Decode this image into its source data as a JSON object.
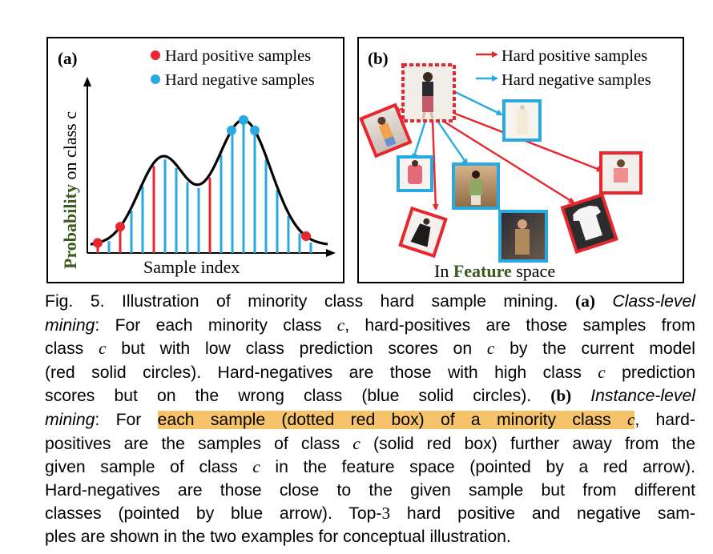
{
  "panel_a": {
    "label": "(a)",
    "legend_positive": "Hard positive samples",
    "legend_negative": "Hard negative samples",
    "xlabel": "Sample index",
    "ylabel_bold": "Probability",
    "ylabel_rest": " on class c",
    "colors": {
      "positive": "#e8262d",
      "negative": "#29a9e1",
      "curve": "#000000"
    }
  },
  "panel_b": {
    "label": "(b)",
    "legend_positive": "Hard positive samples",
    "legend_negative": "Hard negative samples",
    "footer_pre": "In ",
    "footer_bold": "Feature",
    "footer_post": " space",
    "colors": {
      "positive": "#e8262d",
      "negative": "#29a9e1",
      "feature": "#3b5a1e"
    }
  },
  "caption": {
    "l1_a": "Fig. 5. Illustration of minority class hard sample mining. ",
    "l1_b": "(a)",
    "l1_c": " Class-level",
    "l2_a": "mining",
    "l2_b": ": For each minority class ",
    "l2_c": "c",
    "l2_d": ", hard-positives are those samples from",
    "l3_a": "class ",
    "l3_b": "c",
    "l3_c": " but with low class prediction scores on ",
    "l3_d": "c",
    "l3_e": " by the current model",
    "l4_a": "(red solid circles). Hard-negatives are those with high class ",
    "l4_b": "c",
    "l4_c": " prediction",
    "l5_a": "scores but on the wrong class (blue solid circles). ",
    "l5_b": "(b)",
    "l5_c": " Instance-level",
    "l6_a": "mining",
    "l6_b": ": For ",
    "l6_hl": "each sample (dotted red box) of a minority class ",
    "l6_hl_c": "c",
    "l6_c": ", hard-",
    "l7_a": "positives are the samples of class ",
    "l7_b": "c",
    "l7_c": " (solid red box) further away from the",
    "l8_a": "given sample of class ",
    "l8_b": "c",
    "l8_c": " in the feature space (pointed by a red arrow).",
    "l9": "Hard-negatives are those close to the given sample but from different",
    "l10_a": "classes (pointed by blue arrow). Top-",
    "l10_b": "3",
    "l10_c": " hard positive and negative sam-",
    "l11": "ples are shown in the two examples for conceptual illustration."
  }
}
